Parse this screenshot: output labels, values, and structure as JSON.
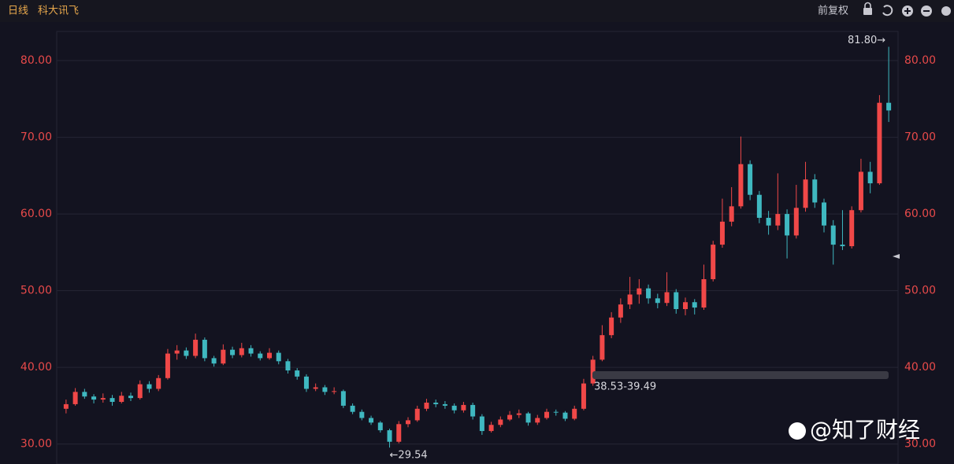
{
  "header": {
    "period": "日线",
    "name": "科大讯飞",
    "adjust": "前复权"
  },
  "chart_data": {
    "type": "candlestick",
    "ylim": [
      27.4,
      83.8
    ],
    "yticks": [
      {
        "value": 30,
        "label": "30.00"
      },
      {
        "value": 40,
        "label": "40.00"
      },
      {
        "value": 50,
        "label": "50.00"
      },
      {
        "value": 60,
        "label": "60.00"
      },
      {
        "value": 70,
        "label": "70.00"
      },
      {
        "value": 80,
        "label": "80.00"
      }
    ],
    "grid": true,
    "up_color": "#f04848",
    "down_color": "#3fb8c0",
    "candles": [
      [
        34.6,
        35.8,
        34.0,
        35.2
      ],
      [
        35.2,
        37.3,
        35.0,
        36.8
      ],
      [
        36.8,
        37.2,
        35.9,
        36.2
      ],
      [
        36.2,
        36.5,
        35.3,
        35.8
      ],
      [
        35.8,
        36.6,
        35.4,
        36.0
      ],
      [
        36.0,
        36.4,
        35.0,
        35.5
      ],
      [
        35.5,
        36.8,
        35.3,
        36.3
      ],
      [
        36.3,
        36.7,
        35.6,
        36.0
      ],
      [
        36.0,
        38.3,
        35.8,
        37.8
      ],
      [
        37.8,
        38.2,
        36.7,
        37.2
      ],
      [
        37.2,
        39.0,
        36.9,
        38.6
      ],
      [
        38.6,
        42.4,
        38.4,
        41.8
      ],
      [
        41.8,
        42.9,
        41.0,
        42.2
      ],
      [
        42.2,
        42.6,
        41.1,
        41.5
      ],
      [
        41.5,
        44.4,
        41.2,
        43.6
      ],
      [
        43.6,
        43.9,
        40.8,
        41.2
      ],
      [
        41.2,
        41.5,
        40.1,
        40.5
      ],
      [
        40.5,
        43.0,
        40.3,
        42.3
      ],
      [
        42.3,
        42.7,
        41.2,
        41.6
      ],
      [
        41.6,
        43.2,
        41.3,
        42.5
      ],
      [
        42.5,
        42.9,
        41.4,
        41.8
      ],
      [
        41.8,
        42.1,
        40.9,
        41.2
      ],
      [
        41.2,
        42.5,
        41.0,
        41.9
      ],
      [
        41.9,
        42.2,
        40.4,
        40.8
      ],
      [
        40.8,
        41.1,
        39.2,
        39.6
      ],
      [
        39.6,
        39.9,
        38.4,
        38.8
      ],
      [
        38.8,
        39.1,
        36.8,
        37.2
      ],
      [
        37.2,
        37.9,
        36.9,
        37.4
      ],
      [
        37.4,
        37.7,
        36.4,
        36.8
      ],
      [
        36.8,
        37.4,
        36.5,
        36.9
      ],
      [
        36.9,
        37.1,
        34.7,
        35.0
      ],
      [
        35.0,
        35.3,
        33.9,
        34.2
      ],
      [
        34.2,
        34.5,
        33.1,
        33.4
      ],
      [
        33.4,
        33.7,
        32.5,
        32.8
      ],
      [
        32.8,
        33.0,
        31.5,
        31.8
      ],
      [
        31.8,
        32.0,
        29.54,
        30.3
      ],
      [
        30.3,
        33.0,
        30.1,
        32.6
      ],
      [
        32.6,
        33.5,
        32.2,
        33.1
      ],
      [
        33.1,
        35.0,
        32.9,
        34.6
      ],
      [
        34.6,
        35.9,
        34.3,
        35.4
      ],
      [
        35.4,
        35.8,
        34.8,
        35.2
      ],
      [
        35.2,
        35.6,
        34.6,
        35.0
      ],
      [
        35.0,
        35.3,
        34.0,
        34.4
      ],
      [
        34.4,
        35.5,
        34.1,
        35.1
      ],
      [
        35.1,
        35.4,
        33.2,
        33.6
      ],
      [
        33.6,
        33.9,
        31.2,
        31.7
      ],
      [
        31.7,
        32.9,
        31.5,
        32.5
      ],
      [
        32.5,
        33.6,
        32.2,
        33.2
      ],
      [
        33.2,
        34.3,
        33.0,
        33.8
      ],
      [
        33.8,
        34.5,
        33.4,
        34.0
      ],
      [
        34.0,
        34.2,
        32.4,
        32.8
      ],
      [
        32.8,
        33.8,
        32.5,
        33.4
      ],
      [
        33.4,
        34.6,
        33.2,
        34.2
      ],
      [
        34.2,
        34.5,
        33.7,
        34.1
      ],
      [
        34.1,
        34.3,
        33.0,
        33.3
      ],
      [
        33.3,
        35.0,
        33.1,
        34.6
      ],
      [
        34.6,
        38.5,
        34.4,
        37.9
      ],
      [
        37.9,
        41.5,
        37.6,
        41.0
      ],
      [
        41.0,
        45.5,
        40.8,
        44.2
      ],
      [
        44.2,
        47.2,
        43.8,
        46.5
      ],
      [
        46.5,
        49.0,
        45.8,
        48.2
      ],
      [
        48.2,
        51.8,
        47.6,
        49.5
      ],
      [
        49.5,
        51.5,
        48.3,
        50.3
      ],
      [
        50.3,
        50.8,
        48.3,
        49.0
      ],
      [
        49.0,
        49.6,
        47.7,
        48.4
      ],
      [
        48.4,
        52.4,
        48.0,
        49.8
      ],
      [
        49.8,
        50.2,
        47.0,
        47.6
      ],
      [
        47.6,
        49.1,
        46.8,
        48.5
      ],
      [
        48.5,
        48.9,
        46.9,
        47.8
      ],
      [
        47.8,
        53.4,
        47.5,
        51.5
      ],
      [
        51.5,
        56.5,
        51.2,
        56.0
      ],
      [
        56.0,
        62.0,
        55.6,
        59.0
      ],
      [
        59.0,
        63.5,
        58.4,
        61.0
      ],
      [
        61.0,
        70.1,
        60.7,
        66.5
      ],
      [
        66.5,
        67.0,
        61.8,
        62.5
      ],
      [
        62.5,
        63.0,
        58.8,
        59.5
      ],
      [
        59.5,
        60.4,
        57.3,
        58.5
      ],
      [
        58.5,
        65.3,
        57.9,
        60.0
      ],
      [
        60.0,
        60.6,
        54.2,
        57.2
      ],
      [
        57.2,
        63.8,
        56.8,
        60.8
      ],
      [
        60.8,
        66.8,
        60.3,
        64.5
      ],
      [
        64.5,
        65.2,
        60.8,
        61.5
      ],
      [
        61.5,
        62.0,
        57.6,
        58.5
      ],
      [
        58.5,
        59.2,
        53.4,
        56.0
      ],
      [
        56.0,
        60.5,
        55.3,
        55.8
      ],
      [
        55.8,
        61.0,
        55.5,
        60.5
      ],
      [
        60.5,
        67.2,
        60.2,
        65.5
      ],
      [
        65.5,
        66.8,
        62.7,
        64.0
      ],
      [
        64.0,
        75.5,
        63.8,
        74.5
      ],
      [
        74.5,
        81.8,
        72.0,
        73.5
      ]
    ],
    "annotations": {
      "high": "81.80→",
      "low": "←29.54",
      "range": "38.53-39.49"
    }
  },
  "watermark": "@知了财经"
}
